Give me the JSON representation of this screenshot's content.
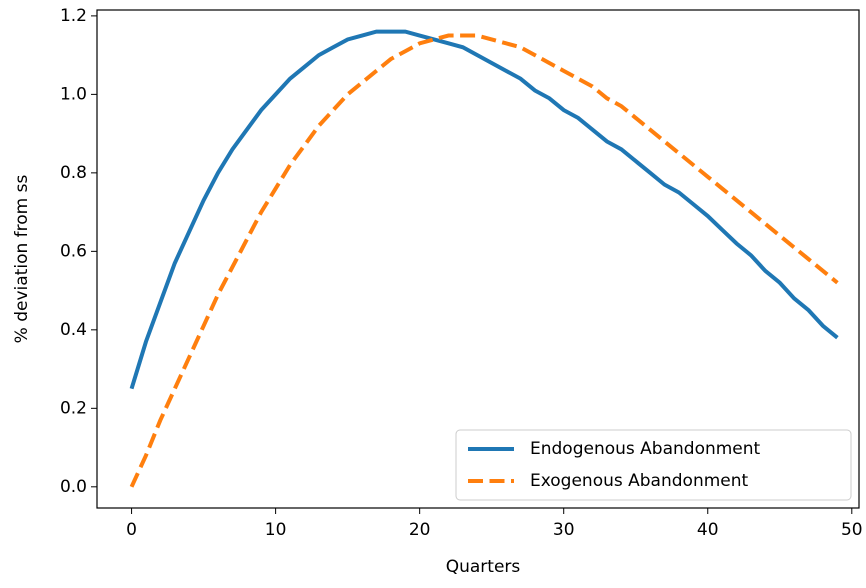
{
  "chart_data": {
    "type": "line",
    "xlabel": "Quarters",
    "ylabel": "% deviation from ss",
    "x": [
      0,
      1,
      2,
      3,
      4,
      5,
      6,
      7,
      8,
      9,
      10,
      11,
      12,
      13,
      14,
      15,
      16,
      17,
      18,
      19,
      20,
      21,
      22,
      23,
      24,
      25,
      26,
      27,
      28,
      29,
      30,
      31,
      32,
      33,
      34,
      35,
      36,
      37,
      38,
      39,
      40,
      41,
      42,
      43,
      44,
      45,
      46,
      47,
      48,
      49
    ],
    "series": [
      {
        "name": "Endogenous Abandonment",
        "color": "#1f77b4",
        "dash": "solid",
        "values": [
          0.25,
          0.37,
          0.47,
          0.57,
          0.65,
          0.73,
          0.8,
          0.86,
          0.91,
          0.96,
          1.0,
          1.04,
          1.07,
          1.1,
          1.12,
          1.14,
          1.15,
          1.16,
          1.16,
          1.16,
          1.15,
          1.14,
          1.13,
          1.12,
          1.1,
          1.08,
          1.06,
          1.04,
          1.01,
          0.99,
          0.96,
          0.94,
          0.91,
          0.88,
          0.86,
          0.83,
          0.8,
          0.77,
          0.75,
          0.72,
          0.69,
          0.655,
          0.62,
          0.59,
          0.55,
          0.52,
          0.48,
          0.45,
          0.41,
          0.38
        ]
      },
      {
        "name": "Exogenous Abandonment",
        "color": "#ff7f0e",
        "dash": "dashed",
        "values": [
          0.0,
          0.08,
          0.17,
          0.25,
          0.33,
          0.41,
          0.49,
          0.56,
          0.63,
          0.7,
          0.76,
          0.82,
          0.87,
          0.92,
          0.96,
          1.0,
          1.03,
          1.06,
          1.09,
          1.11,
          1.13,
          1.14,
          1.15,
          1.15,
          1.15,
          1.14,
          1.13,
          1.12,
          1.1,
          1.08,
          1.06,
          1.04,
          1.02,
          0.99,
          0.97,
          0.94,
          0.91,
          0.88,
          0.85,
          0.82,
          0.79,
          0.76,
          0.73,
          0.7,
          0.67,
          0.64,
          0.61,
          0.58,
          0.55,
          0.52
        ]
      }
    ],
    "xlim": [
      -2.4,
      50.5
    ],
    "xticks": [
      0,
      10,
      20,
      30,
      40,
      50
    ],
    "ylim": [
      -0.054,
      1.215
    ],
    "yticks": [
      {
        "value": 0,
        "label": "0.0"
      },
      {
        "value": 0.2,
        "label": "0.2"
      },
      {
        "value": 0.4,
        "label": "0.4"
      },
      {
        "value": 0.6,
        "label": "0.6"
      },
      {
        "value": 0.8,
        "label": "0.8"
      },
      {
        "value": 1,
        "label": "1.0"
      },
      {
        "value": 1.2,
        "label": "1.2"
      }
    ],
    "legend": "lower right",
    "grid": false
  }
}
